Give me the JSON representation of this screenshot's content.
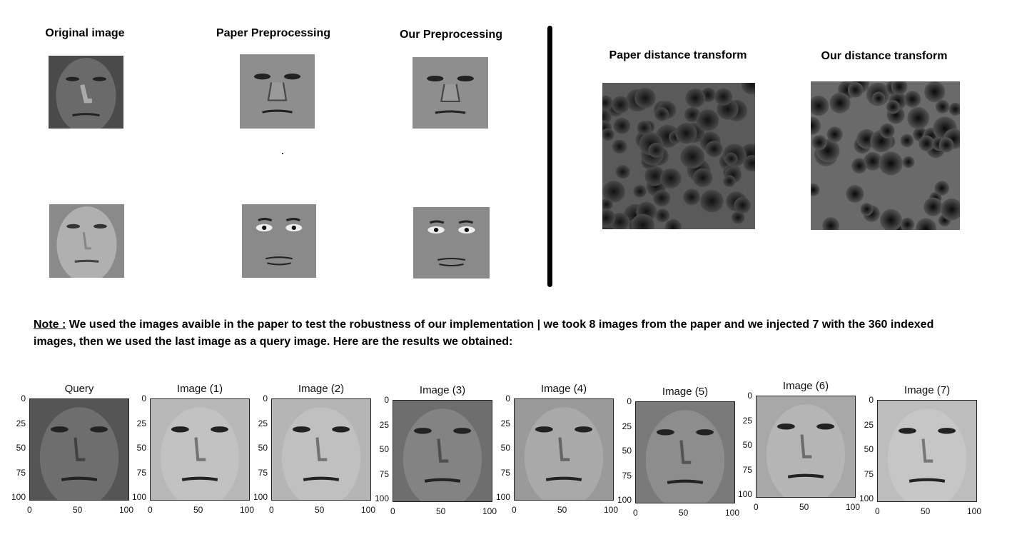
{
  "top_panel": {
    "headings": {
      "original": "Original image",
      "paper_preprocessing": "Paper Preprocessing",
      "our_preprocessing": "Our Preprocessing",
      "paper_distance": "Paper distance transform",
      "our_distance": "Our distance transform"
    }
  },
  "note": {
    "label": "Note :",
    "text": " We used the images avaible in the paper to test the robustness of our implementation | we took 8 images from the paper and we injected 7 with the 360 indexed images, then we used the last image as a query image. Here are the results we obtained:"
  },
  "results": {
    "titles": [
      "Query",
      "Image (1)",
      "Image (2)",
      "Image (3)",
      "Image (4)",
      "Image (5)",
      "Image (6)",
      "Image (7)"
    ],
    "y_ticks": [
      "0",
      "25",
      "50",
      "75",
      "100"
    ],
    "x_ticks": [
      "0",
      "50",
      "100"
    ],
    "shades": [
      "#555555",
      "#b8b8b8",
      "#b5b5b5",
      "#6e6e6e",
      "#9a9a9a",
      "#7a7a7a",
      "#a8a8a8",
      "#bdbdbd"
    ]
  }
}
